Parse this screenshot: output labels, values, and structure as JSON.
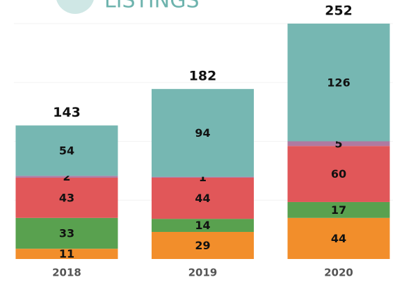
{
  "chart_data": {
    "type": "stacked_bar",
    "title": "LISTINGS",
    "categories": [
      "2018",
      "2019",
      "2020"
    ],
    "series": [
      {
        "color": "#f28e2b",
        "values": [
          11,
          29,
          44
        ]
      },
      {
        "color": "#59a14f",
        "values": [
          33,
          14,
          17
        ]
      },
      {
        "color": "#e15759",
        "values": [
          43,
          44,
          60
        ]
      },
      {
        "color": "#b07aa1",
        "values": [
          2,
          1,
          5
        ]
      },
      {
        "color": "#76b7b2",
        "values": [
          54,
          94,
          126
        ]
      }
    ],
    "totals": [
      143,
      182,
      252
    ],
    "ylim": [
      0,
      252
    ]
  }
}
